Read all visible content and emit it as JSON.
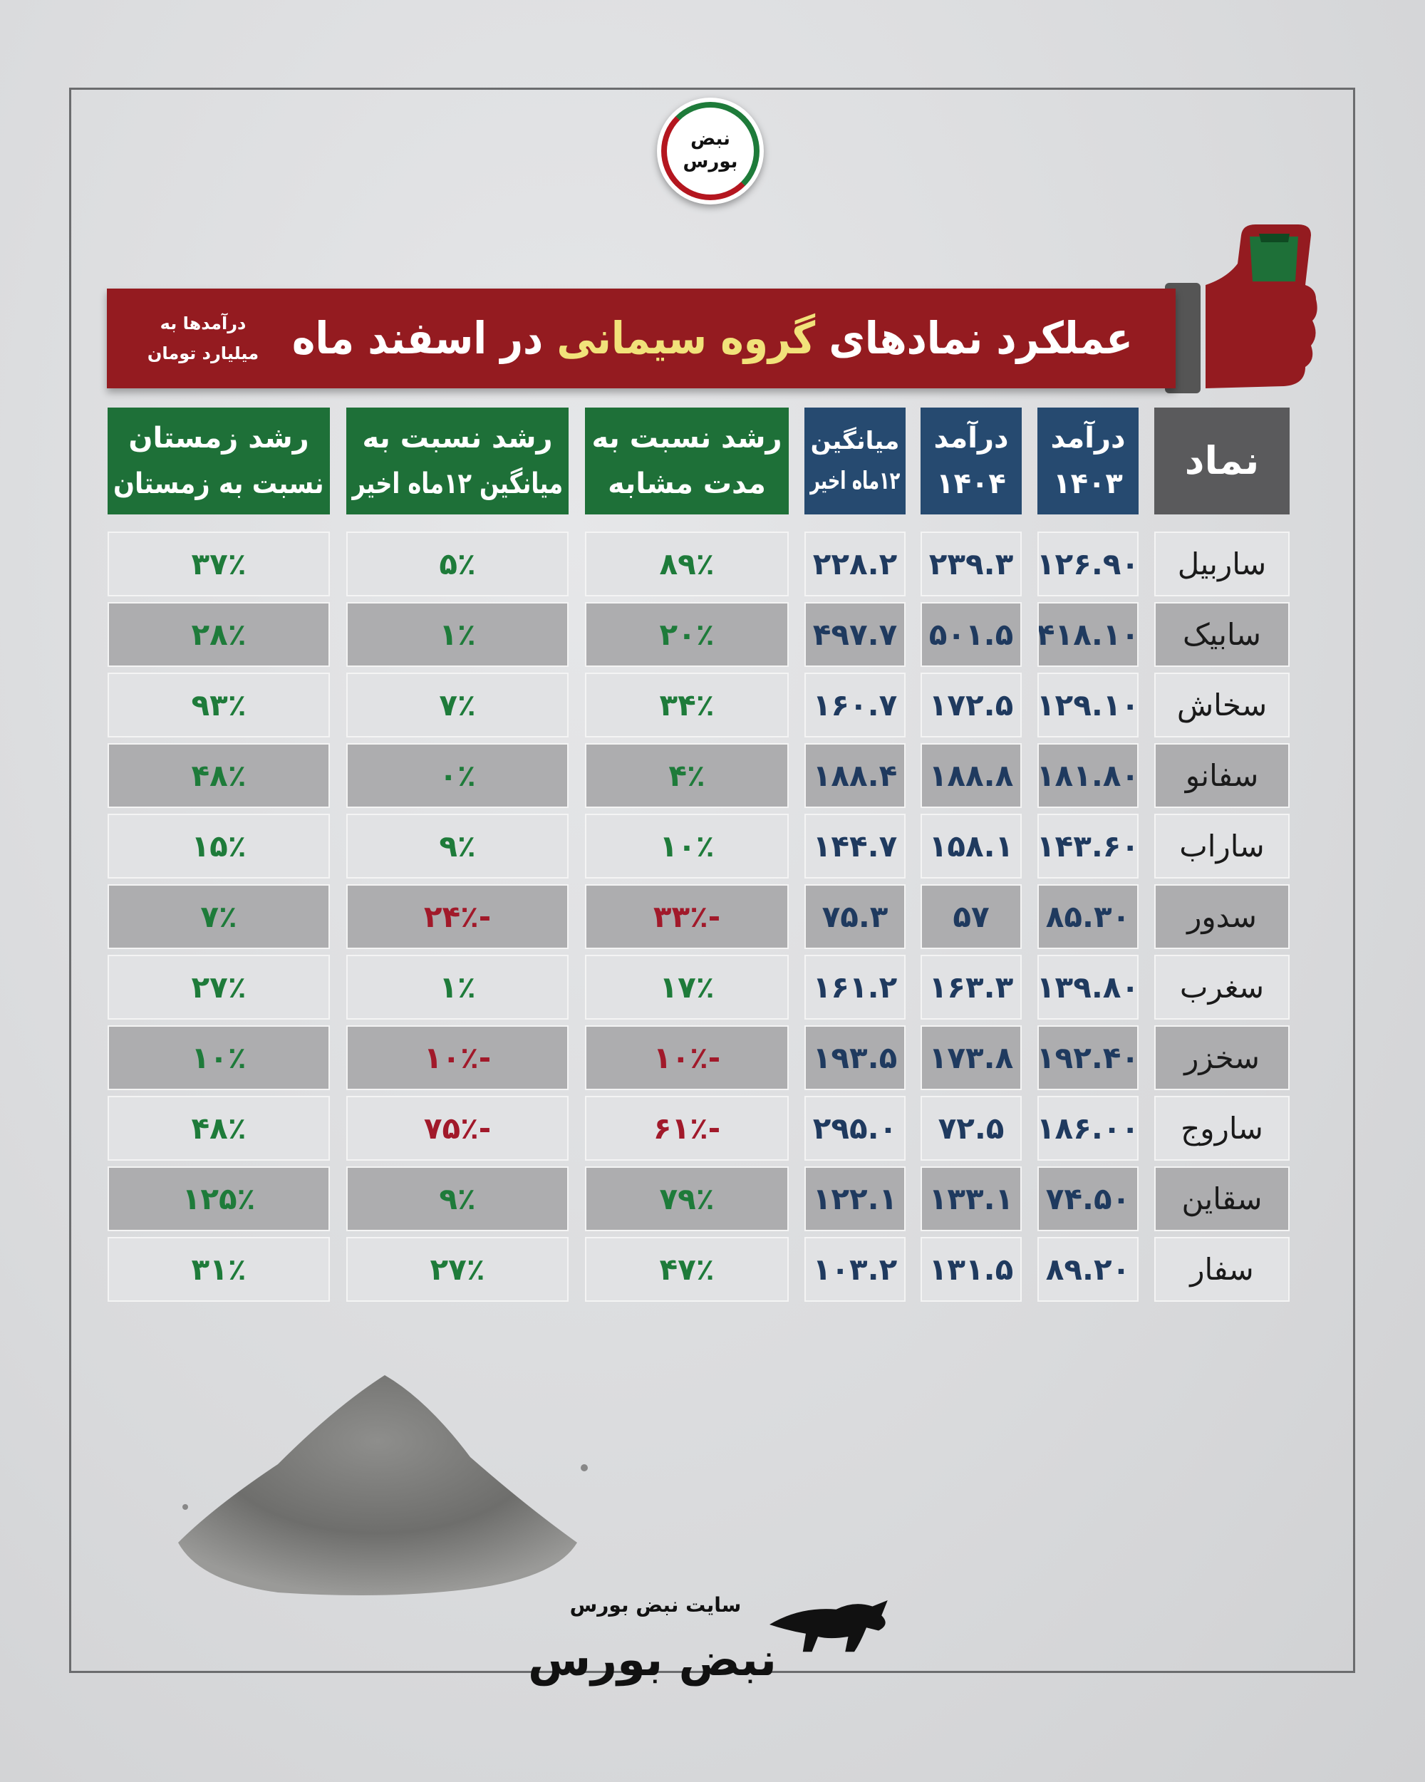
{
  "logo": {
    "text_top": "نبض",
    "text_bottom": "بورس"
  },
  "banner": {
    "title_before": "عملکرد نمادهای ",
    "title_highlight": "گروه سیمانی",
    "title_after": " در اسفند ماه",
    "unit_line1": "درآمدها به",
    "unit_line2": "میلیارد تومان",
    "highlight_color": "#f1e27a",
    "background_color": "#941b20"
  },
  "table": {
    "headers": [
      {
        "line1": "نماد",
        "line2": ""
      },
      {
        "line1": "درآمد",
        "line2": "۱۴۰۳"
      },
      {
        "line1": "درآمد",
        "line2": "۱۴۰۴"
      },
      {
        "line1": "میانگین",
        "line2": "۱۲ماه اخیر"
      },
      {
        "line1": "رشد نسبت به",
        "line2": "مدت مشابه"
      },
      {
        "line1": "رشد نسبت به",
        "line2": "میانگین ۱۲ماه اخیر"
      },
      {
        "line1": "رشد زمستان",
        "line2": "نسبت به زمستان"
      }
    ],
    "rows": [
      [
        "ساربیل",
        "۱۲۶.۹۰",
        "۲۳۹.۳",
        "۲۲۸.۲",
        "۸۹٪",
        "۵٪",
        "۳۷٪"
      ],
      [
        "سابیک",
        "۴۱۸.۱۰",
        "۵۰۱.۵",
        "۴۹۷.۷",
        "۲۰٪",
        "۱٪",
        "۲۸٪"
      ],
      [
        "سخاش",
        "۱۲۹.۱۰",
        "۱۷۲.۵",
        "۱۶۰.۷",
        "۳۴٪",
        "۷٪",
        "۹۳٪"
      ],
      [
        "سفانو",
        "۱۸۱.۸۰",
        "۱۸۸.۸",
        "۱۸۸.۴",
        "۴٪",
        "۰٪",
        "۴۸٪"
      ],
      [
        "ساراب",
        "۱۴۳.۶۰",
        "۱۵۸.۱",
        "۱۴۴.۷",
        "۱۰٪",
        "۹٪",
        "۱۵٪"
      ],
      [
        "سدور",
        "۸۵.۳۰",
        "۵۷",
        "۷۵.۳",
        "-۳۳٪",
        "-۲۴٪",
        "۷٪"
      ],
      [
        "سغرب",
        "۱۳۹.۸۰",
        "۱۶۳.۳",
        "۱۶۱.۲",
        "۱۷٪",
        "۱٪",
        "۲۷٪"
      ],
      [
        "سخزر",
        "۱۹۲.۴۰",
        "۱۷۳.۸",
        "۱۹۳.۵",
        "-۱۰٪",
        "-۱۰٪",
        "۱۰٪"
      ],
      [
        "ساروج",
        "۱۸۶.۰۰",
        "۷۲.۵",
        "۲۹۵.۰",
        "-۶۱٪",
        "-۷۵٪",
        "۴۸٪"
      ],
      [
        "سقاین",
        "۷۴.۵۰",
        "۱۳۳.۱",
        "۱۲۲.۱",
        "۷۹٪",
        "۹٪",
        "۱۲۵٪"
      ],
      [
        "سفار",
        "۸۹.۲۰",
        "۱۳۱.۵",
        "۱۰۳.۲",
        "۴۷٪",
        "۲۷٪",
        "۳۱٪"
      ]
    ],
    "colors": {
      "number": "#1f3a5f",
      "positive": "#1e7b3a",
      "negative": "#a1192a",
      "header_blue": "#264a70",
      "header_green": "#1e7038",
      "header_gray": "#5a5a5c"
    }
  },
  "footer": {
    "site_label": "سایت نبض بورس",
    "logo_text": "نبض بورس"
  }
}
